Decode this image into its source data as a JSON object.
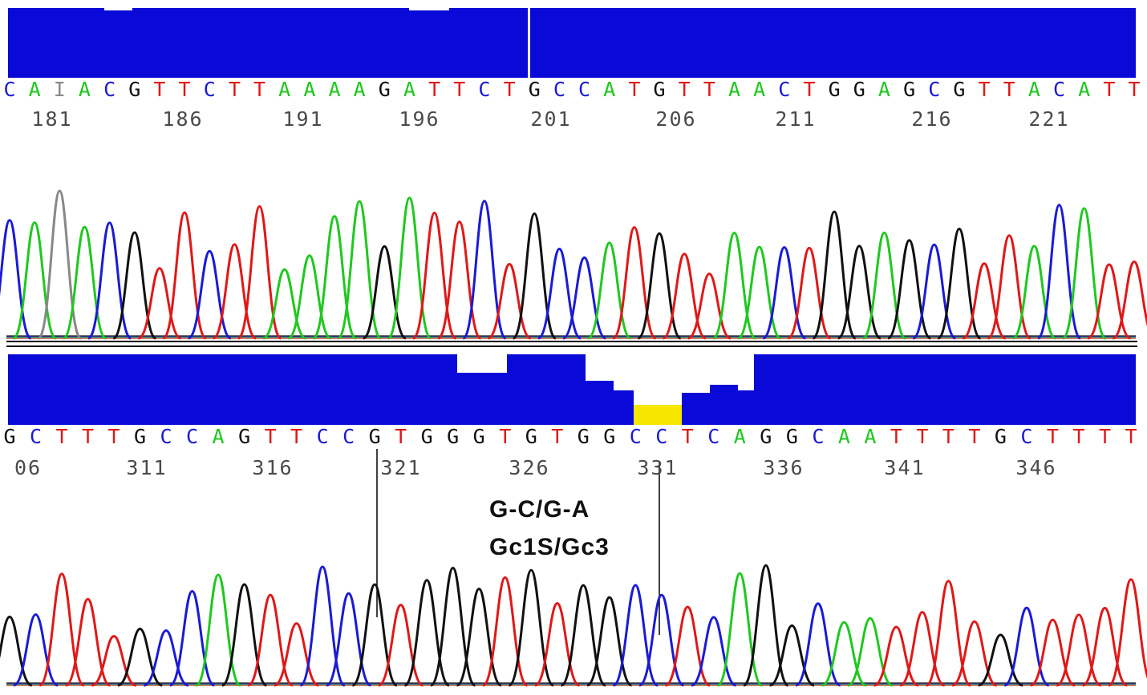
{
  "panels": [
    {
      "sequence": [
        "C",
        "A",
        "I",
        "A",
        "C",
        "G",
        "T",
        "T",
        "C",
        "T",
        "T",
        "A",
        "A",
        "A",
        "A",
        "G",
        "A",
        "T",
        "T",
        "C",
        "T",
        "G",
        "C",
        "C",
        "A",
        "T",
        "G",
        "T",
        "T",
        "A",
        "A",
        "C",
        "T",
        "G",
        "G",
        "A",
        "G",
        "C",
        "G",
        "T",
        "T",
        "A",
        "C",
        "A",
        "T",
        "T"
      ],
      "positions": [
        "181",
        "186",
        "191",
        "196",
        "201",
        "206",
        "211",
        "216",
        "221"
      ]
    },
    {
      "sequence": [
        "G",
        "C",
        "T",
        "T",
        "T",
        "G",
        "C",
        "C",
        "A",
        "G",
        "T",
        "T",
        "C",
        "C",
        "G",
        "T",
        "G",
        "G",
        "G",
        "T",
        "G",
        "T",
        "G",
        "G",
        "C",
        "C",
        "T",
        "C",
        "A",
        "G",
        "G",
        "C",
        "A",
        "A",
        "T",
        "T",
        "T",
        "T",
        "G",
        "C",
        "T",
        "T",
        "T",
        "T"
      ],
      "positions": [
        "06",
        "311",
        "316",
        "321",
        "326",
        "331",
        "336",
        "341",
        "346"
      ]
    }
  ],
  "annotation": {
    "line1": "G-C/G-A",
    "line2": "Gc1S/Gc3"
  }
}
